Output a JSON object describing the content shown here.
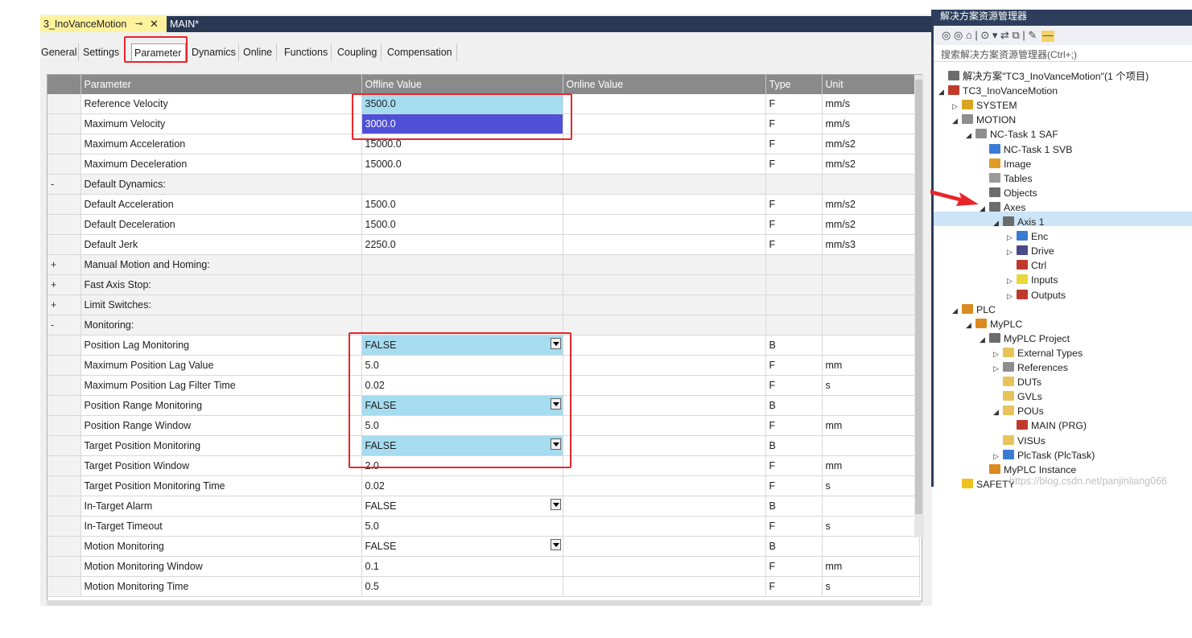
{
  "doc_tabs": {
    "active": "3_InoVanceMotion",
    "pin_icon": "⊸",
    "close_icon": "✕",
    "second": "MAIN*"
  },
  "sub_tabs": [
    "General",
    "Settings",
    "Parameter",
    "Dynamics",
    "Online",
    "Functions",
    "Coupling",
    "Compensation"
  ],
  "grid": {
    "headers": [
      "Parameter",
      "Offline Value",
      "Online Value",
      "Type",
      "Unit"
    ],
    "rows": [
      {
        "gutter": "",
        "name": "Reference Velocity",
        "value": "3500.0",
        "type": "F",
        "unit": "mm/s",
        "style": "blue"
      },
      {
        "gutter": "",
        "name": "Maximum Velocity",
        "value": "3000.0",
        "type": "F",
        "unit": "mm/s",
        "style": "sel"
      },
      {
        "gutter": "",
        "name": "Maximum Acceleration",
        "value": "15000.0",
        "type": "F",
        "unit": "mm/s2"
      },
      {
        "gutter": "",
        "name": "Maximum Deceleration",
        "value": "15000.0",
        "type": "F",
        "unit": "mm/s2"
      },
      {
        "gutter": "-",
        "name": "Default Dynamics:",
        "value": "",
        "type": "",
        "unit": "",
        "group": true
      },
      {
        "gutter": "",
        "name": "Default Acceleration",
        "value": "1500.0",
        "type": "F",
        "unit": "mm/s2"
      },
      {
        "gutter": "",
        "name": "Default Deceleration",
        "value": "1500.0",
        "type": "F",
        "unit": "mm/s2"
      },
      {
        "gutter": "",
        "name": "Default Jerk",
        "value": "2250.0",
        "type": "F",
        "unit": "mm/s3"
      },
      {
        "gutter": "+",
        "name": "Manual Motion and Homing:",
        "value": "",
        "type": "",
        "unit": "",
        "group": true
      },
      {
        "gutter": "+",
        "name": "Fast Axis Stop:",
        "value": "",
        "type": "",
        "unit": "",
        "group": true
      },
      {
        "gutter": "+",
        "name": "Limit Switches:",
        "value": "",
        "type": "",
        "unit": "",
        "group": true
      },
      {
        "gutter": "-",
        "name": "Monitoring:",
        "value": "",
        "type": "",
        "unit": "",
        "group": true
      },
      {
        "gutter": "",
        "name": "Position Lag Monitoring",
        "value": "FALSE",
        "type": "B",
        "unit": "",
        "style": "blue",
        "dropdown": true
      },
      {
        "gutter": "",
        "name": "Maximum Position Lag Value",
        "value": "5.0",
        "type": "F",
        "unit": "mm",
        "indent": true
      },
      {
        "gutter": "",
        "name": "Maximum Position Lag Filter Time",
        "value": "0.02",
        "type": "F",
        "unit": "s",
        "indent": true
      },
      {
        "gutter": "",
        "name": "Position Range Monitoring",
        "value": "FALSE",
        "type": "B",
        "unit": "",
        "style": "blue",
        "dropdown": true
      },
      {
        "gutter": "",
        "name": "Position Range Window",
        "value": "5.0",
        "type": "F",
        "unit": "mm",
        "indent": true
      },
      {
        "gutter": "",
        "name": "Target Position Monitoring",
        "value": "FALSE",
        "type": "B",
        "unit": "",
        "style": "blue",
        "dropdown": true
      },
      {
        "gutter": "",
        "name": "Target Position Window",
        "value": "2.0",
        "type": "F",
        "unit": "mm",
        "indent": true
      },
      {
        "gutter": "",
        "name": "Target Position Monitoring Time",
        "value": "0.02",
        "type": "F",
        "unit": "s",
        "indent": true
      },
      {
        "gutter": "",
        "name": "In-Target Alarm",
        "value": "FALSE",
        "type": "B",
        "unit": "",
        "dropdown": true
      },
      {
        "gutter": "",
        "name": "In-Target Timeout",
        "value": "5.0",
        "type": "F",
        "unit": "s",
        "indent": true
      },
      {
        "gutter": "",
        "name": "Motion Monitoring",
        "value": "FALSE",
        "type": "B",
        "unit": "",
        "dropdown": true
      },
      {
        "gutter": "",
        "name": "Motion Monitoring Window",
        "value": "0.1",
        "type": "F",
        "unit": "mm",
        "indent": true
      },
      {
        "gutter": "",
        "name": "Motion Monitoring Time",
        "value": "0.5",
        "type": "F",
        "unit": "s",
        "indent": true
      }
    ]
  },
  "explorer": {
    "title": "解决方案资源管理器",
    "toolbar": "◎ ◎ ⌂ | ⊙ ▾ ⇄ ⧉ | ✎",
    "search_placeholder": "搜索解决方案资源管理器(Ctrl+;)",
    "tree": [
      {
        "label": "解决方案\"TC3_InoVanceMotion\"(1 个项目)",
        "level": 0,
        "arrow": "",
        "icon": "solution-icon",
        "color": "#6c6c6c"
      },
      {
        "label": "TC3_InoVanceMotion",
        "level": 0,
        "arrow": "◢",
        "icon": "project-icon",
        "color": "#c0392b"
      },
      {
        "label": "SYSTEM",
        "level": 1,
        "arrow": "▷",
        "icon": "system-icon",
        "color": "#d9a520"
      },
      {
        "label": "MOTION",
        "level": 1,
        "arrow": "◢",
        "icon": "motion-icon",
        "color": "#8e8e8e"
      },
      {
        "label": "NC-Task 1 SAF",
        "level": 2,
        "arrow": "◢",
        "icon": "nc-task-icon",
        "color": "#8e8e8e"
      },
      {
        "label": "NC-Task 1 SVB",
        "level": 3,
        "arrow": "",
        "icon": "svb-icon",
        "color": "#3a7bd5"
      },
      {
        "label": "Image",
        "level": 3,
        "arrow": "",
        "icon": "image-icon",
        "color": "#e09b27"
      },
      {
        "label": "Tables",
        "level": 3,
        "arrow": "",
        "icon": "tables-icon",
        "color": "#9a9a9a"
      },
      {
        "label": "Objects",
        "level": 3,
        "arrow": "",
        "icon": "objects-icon",
        "color": "#6c6c6c"
      },
      {
        "label": "Axes",
        "level": 3,
        "arrow": "◢",
        "icon": "axes-icon",
        "color": "#6c6c6c"
      },
      {
        "label": "Axis 1",
        "level": 4,
        "arrow": "◢",
        "icon": "axis-icon",
        "color": "#6c6c6c",
        "selected": true
      },
      {
        "label": "Enc",
        "level": 5,
        "arrow": "▷",
        "icon": "enc-icon",
        "color": "#3a7bd5"
      },
      {
        "label": "Drive",
        "level": 5,
        "arrow": "▷",
        "icon": "drive-icon",
        "color": "#4a4a8a"
      },
      {
        "label": "Ctrl",
        "level": 5,
        "arrow": "",
        "icon": "ctrl-icon",
        "color": "#c0392b"
      },
      {
        "label": "Inputs",
        "level": 5,
        "arrow": "▷",
        "icon": "inputs-icon",
        "color": "#e8d83a"
      },
      {
        "label": "Outputs",
        "level": 5,
        "arrow": "▷",
        "icon": "outputs-icon",
        "color": "#c0392b"
      },
      {
        "label": "PLC",
        "level": 1,
        "arrow": "◢",
        "icon": "plc-icon",
        "color": "#d98a20"
      },
      {
        "label": "MyPLC",
        "level": 2,
        "arrow": "◢",
        "icon": "myplc-icon",
        "color": "#d98a20"
      },
      {
        "label": "MyPLC Project",
        "level": 3,
        "arrow": "◢",
        "icon": "plc-project-icon",
        "color": "#6c6c6c"
      },
      {
        "label": "External Types",
        "level": 4,
        "arrow": "▷",
        "icon": "folder-icon",
        "color": "#e8c35a"
      },
      {
        "label": "References",
        "level": 4,
        "arrow": "▷",
        "icon": "references-icon",
        "color": "#8e8e8e"
      },
      {
        "label": "DUTs",
        "level": 4,
        "arrow": "",
        "icon": "folder-icon",
        "color": "#e8c35a"
      },
      {
        "label": "GVLs",
        "level": 4,
        "arrow": "",
        "icon": "folder-icon",
        "color": "#e8c35a"
      },
      {
        "label": "POUs",
        "level": 4,
        "arrow": "◢",
        "icon": "folder-open-icon",
        "color": "#e8c35a"
      },
      {
        "label": "MAIN (PRG)",
        "level": 5,
        "arrow": "",
        "icon": "prg-icon",
        "color": "#c0392b"
      },
      {
        "label": "VISUs",
        "level": 4,
        "arrow": "",
        "icon": "folder-icon",
        "color": "#e8c35a"
      },
      {
        "label": "PlcTask (PlcTask)",
        "level": 4,
        "arrow": "▷",
        "icon": "plctask-icon",
        "color": "#3a7bd5"
      },
      {
        "label": "MyPLC Instance",
        "level": 3,
        "arrow": "",
        "icon": "instance-icon",
        "color": "#d98a20"
      },
      {
        "label": "SAFETY",
        "level": 1,
        "arrow": "",
        "icon": "safety-icon",
        "color": "#f0c020"
      }
    ],
    "watermark": "https://blog.csdn.net/panjinliang066"
  },
  "colors": {
    "accent_red": "#e8262a",
    "selected_value": "#5050d6",
    "highlight_blue": "#a6dcef"
  }
}
